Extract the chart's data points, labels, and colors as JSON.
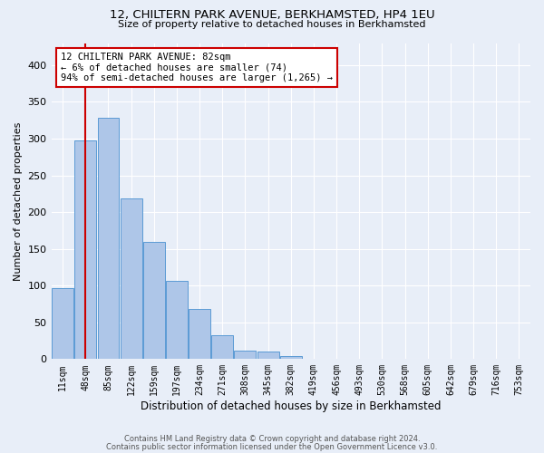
{
  "title": "12, CHILTERN PARK AVENUE, BERKHAMSTED, HP4 1EU",
  "subtitle": "Size of property relative to detached houses in Berkhamsted",
  "xlabel": "Distribution of detached houses by size in Berkhamsted",
  "ylabel": "Number of detached properties",
  "bin_labels": [
    "11sqm",
    "48sqm",
    "85sqm",
    "122sqm",
    "159sqm",
    "197sqm",
    "234sqm",
    "271sqm",
    "308sqm",
    "345sqm",
    "382sqm",
    "419sqm",
    "456sqm",
    "493sqm",
    "530sqm",
    "568sqm",
    "605sqm",
    "642sqm",
    "679sqm",
    "716sqm",
    "753sqm"
  ],
  "bar_heights": [
    97,
    298,
    328,
    219,
    160,
    107,
    68,
    33,
    12,
    10,
    4,
    0,
    1,
    0,
    0,
    0,
    0,
    0,
    0,
    0,
    1
  ],
  "bar_color": "#aec6e8",
  "bar_edge_color": "#5b9bd5",
  "vline_color": "#cc0000",
  "annotation_text": "12 CHILTERN PARK AVENUE: 82sqm\n← 6% of detached houses are smaller (74)\n94% of semi-detached houses are larger (1,265) →",
  "annotation_box_color": "#cc0000",
  "ylim": [
    0,
    430
  ],
  "yticks": [
    0,
    50,
    100,
    150,
    200,
    250,
    300,
    350,
    400
  ],
  "background_color": "#e8eef8",
  "grid_color": "#ffffff",
  "footer1": "Contains HM Land Registry data © Crown copyright and database right 2024.",
  "footer2": "Contains public sector information licensed under the Open Government Licence v3.0."
}
